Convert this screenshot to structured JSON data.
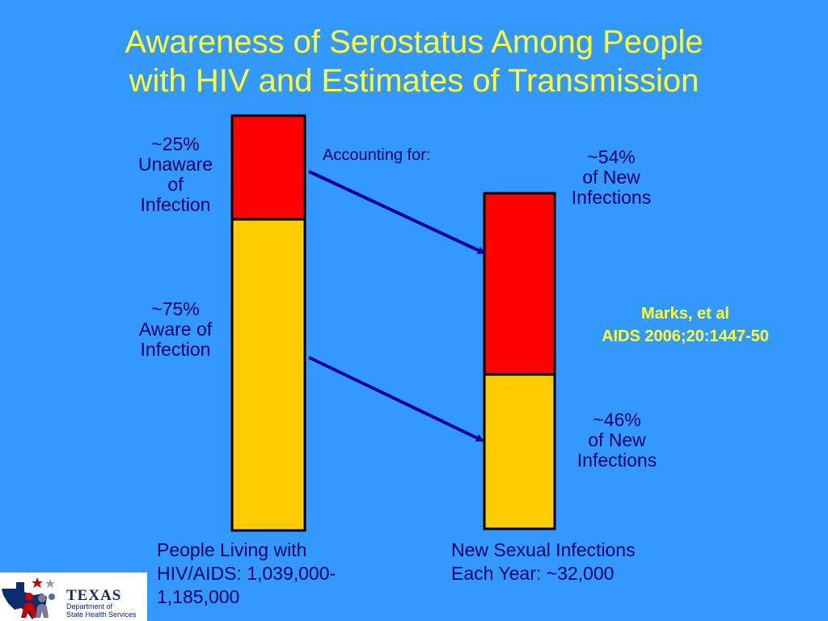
{
  "title": {
    "line1": "Awareness of Serostatus Among People",
    "line2": "with HIV and Estimates of Transmission"
  },
  "chart_data": {
    "type": "bar",
    "stacked": true,
    "categories": [
      "People Living with HIV/AIDS: 1,039,000-1,185,000",
      "New Sexual Infections Each Year: ~32,000"
    ],
    "series": [
      {
        "segment": "unaware / attributed to unaware",
        "values": [
          25,
          54
        ]
      },
      {
        "segment": "aware / attributed to aware",
        "values": [
          75,
          46
        ]
      }
    ],
    "colors": {
      "unaware": "#ff0000",
      "aware": "#ffcc00",
      "outline": "#000000",
      "arrow": "#000099"
    },
    "annotation": "Accounting for:",
    "arrows": [
      {
        "from": "~25% Unaware of Infection",
        "to": "~54% of New Infections"
      },
      {
        "from": "~75% Aware of Infection",
        "to": "~46% of New Infections"
      }
    ],
    "grid": false,
    "legend": "none"
  },
  "labels": {
    "unaware": {
      "l1": "~25%",
      "l2": "Unaware",
      "l3": "of",
      "l4": "Infection"
    },
    "aware": {
      "l1": "~75%",
      "l2": "Aware of",
      "l3": "Infection"
    },
    "new_unaware": {
      "l1": "~54%",
      "l2": "of New",
      "l3": "Infections"
    },
    "new_aware": {
      "l1": "~46%",
      "l2": "of New",
      "l3": "Infections"
    }
  },
  "captions": {
    "left": {
      "l1": "People Living with",
      "l2": "HIV/AIDS: 1,039,000-",
      "l3": "1,185,000"
    },
    "right": {
      "l1": "New Sexual Infections",
      "l2": "Each Year: ~32,000"
    }
  },
  "accounting_label": "Accounting for:",
  "citation": {
    "l1": "Marks, et al",
    "l2": "AIDS 2006;20:1447-50"
  },
  "logo": {
    "name": "TEXAS",
    "sub1": "Department of",
    "sub2": "State Health Services"
  }
}
